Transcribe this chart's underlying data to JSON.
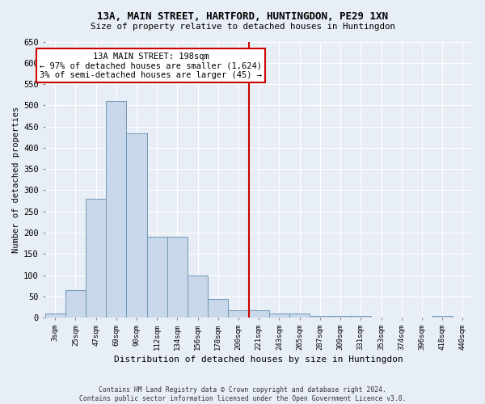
{
  "title": "13A, MAIN STREET, HARTFORD, HUNTINGDON, PE29 1XN",
  "subtitle": "Size of property relative to detached houses in Huntingdon",
  "xlabel": "Distribution of detached houses by size in Huntingdon",
  "ylabel": "Number of detached properties",
  "footer_line1": "Contains HM Land Registry data © Crown copyright and database right 2024.",
  "footer_line2": "Contains public sector information licensed under the Open Government Licence v3.0.",
  "annotation_line1": "13A MAIN STREET: 198sqm",
  "annotation_line2": "← 97% of detached houses are smaller (1,624)",
  "annotation_line3": "3% of semi-detached houses are larger (45) →",
  "bar_labels": [
    "3sqm",
    "25sqm",
    "47sqm",
    "69sqm",
    "90sqm",
    "112sqm",
    "134sqm",
    "156sqm",
    "178sqm",
    "200sqm",
    "221sqm",
    "243sqm",
    "265sqm",
    "287sqm",
    "309sqm",
    "331sqm",
    "353sqm",
    "374sqm",
    "396sqm",
    "418sqm",
    "440sqm"
  ],
  "bar_values": [
    10,
    65,
    280,
    510,
    435,
    190,
    190,
    100,
    45,
    18,
    18,
    10,
    10,
    5,
    5,
    5,
    0,
    0,
    0,
    5,
    0
  ],
  "bar_color": "#c8d8ea",
  "bar_edgecolor": "#7098b8",
  "vline_x": 9.5,
  "vline_color": "#cc0000",
  "ylim": [
    0,
    650
  ],
  "yticks": [
    0,
    50,
    100,
    150,
    200,
    250,
    300,
    350,
    400,
    450,
    500,
    550,
    600,
    650
  ],
  "bg_color": "#e8eef5",
  "grid_color": "#d0d8e4"
}
